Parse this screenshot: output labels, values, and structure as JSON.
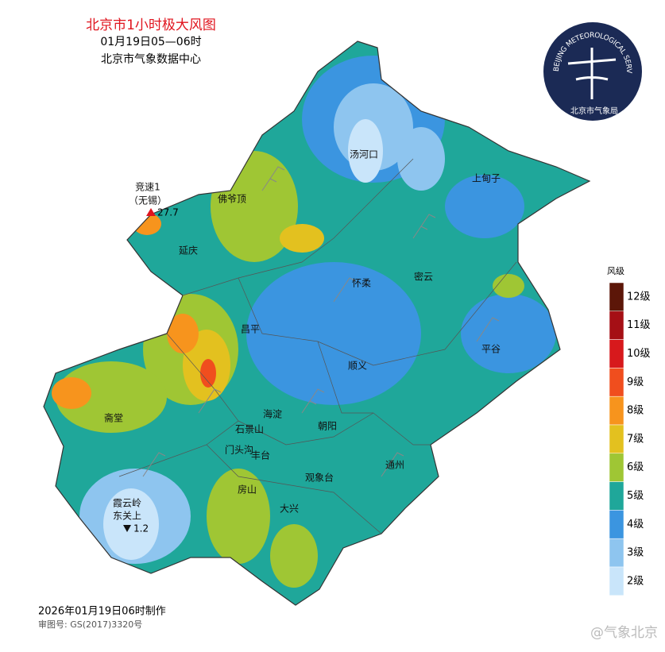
{
  "header": {
    "title": "北京市1小时极大风图",
    "time_range": "01月19日05—06时",
    "source": "北京市气象数据中心"
  },
  "logo": {
    "ring_text": "BEIJING METEOROLOGICAL SERVICE",
    "name": "北京市气象局"
  },
  "legend": {
    "title": "风级",
    "levels": [
      {
        "label": "12级",
        "color": "#5c1608"
      },
      {
        "label": "11级",
        "color": "#a50f15"
      },
      {
        "label": "10级",
        "color": "#d7191c"
      },
      {
        "label": "9级",
        "color": "#f04e1e"
      },
      {
        "label": "8级",
        "color": "#f7941d"
      },
      {
        "label": "7级",
        "color": "#e3c11f"
      },
      {
        "label": "6级",
        "color": "#9fc634"
      },
      {
        "label": "5级",
        "color": "#1fa79a"
      },
      {
        "label": "4级",
        "color": "#3b95e0"
      },
      {
        "label": "3级",
        "color": "#8ec5ef"
      },
      {
        "label": "2级",
        "color": "#c9e5fa"
      }
    ]
  },
  "places": [
    "汤河口",
    "上甸子",
    "佛爷顶",
    "延庆",
    "怀柔",
    "密云",
    "昌平",
    "平谷",
    "顺义",
    "斋堂",
    "海淀",
    "石景山",
    "朝阳",
    "门头沟",
    "丰台",
    "观象台",
    "通州",
    "房山",
    "大兴"
  ],
  "max_station": {
    "name": "竞速1",
    "note": "（无锡）",
    "value": 27.7
  },
  "min_station": {
    "name": "霞云岭",
    "note": "东关上",
    "value": 1.2
  },
  "footer": {
    "made": "2026年01月19日06时制作",
    "approval": "审图号: GS(2017)3320号",
    "watermark": "@气象北京"
  }
}
